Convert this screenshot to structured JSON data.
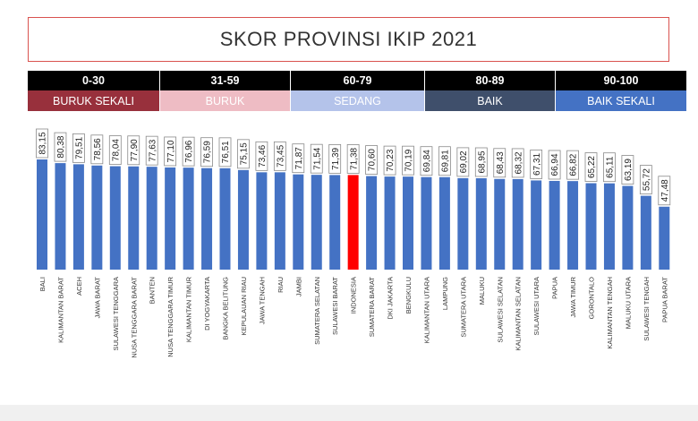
{
  "title": "SKOR PROVINSI IKIP 2021",
  "legend": [
    {
      "range": "0-30",
      "label": "BURUK SEKALI",
      "color": "#98303c"
    },
    {
      "range": "31-59",
      "label": "BURUK",
      "color": "#eebcc4"
    },
    {
      "range": "60-79",
      "label": "SEDANG",
      "color": "#b4c3ea"
    },
    {
      "range": "80-89",
      "label": "BAIK",
      "color": "#3f4f6b"
    },
    {
      "range": "90-100",
      "label": "BAIK SEKALI",
      "color": "#4472c4"
    }
  ],
  "colors": {
    "bar": "#4472c4",
    "highlight": "#ff0000"
  },
  "chart_data": {
    "type": "bar",
    "title": "SKOR PROVINSI IKIP 2021",
    "categories": [
      "BALI",
      "KALIMANTAN BARAT",
      "ACEH",
      "JAWA BARAT",
      "SULAWESI TENGGARA",
      "NUSA TENGGARA BARAT",
      "BANTEN",
      "NUSA TENGGARA TIMUR",
      "KALIMANTAN TIMUR",
      "DI YOGYAKARTA",
      "BANGKA BELITUNG",
      "KEPULAUAN RIAU",
      "JAWA TENGAH",
      "RIAU",
      "JAMBI",
      "SUMATERA SELATAN",
      "SULAWESI BARAT",
      "INDONESIA",
      "SUMATERA BARAT",
      "DKI JAKARTA",
      "BENGKULU",
      "KALIMANTAN UTARA",
      "LAMPUNG",
      "SUMATERA UTARA",
      "MALUKU",
      "SULAWESI SELATAN",
      "KALIMANTAN SELATAN",
      "SULAWESI UTARA",
      "PAPUA",
      "JAWA TIMUR",
      "GORONTALO",
      "KALIMANTAN TENGAH",
      "MALUKU UTARA",
      "SULAWESI TENGAH",
      "PAPUA BARAT"
    ],
    "values": [
      83.15,
      80.38,
      79.51,
      78.56,
      78.04,
      77.9,
      77.63,
      77.1,
      76.96,
      76.59,
      76.51,
      75.15,
      73.46,
      73.45,
      71.87,
      71.54,
      71.39,
      71.38,
      70.6,
      70.23,
      70.19,
      69.84,
      69.81,
      69.02,
      68.95,
      68.43,
      68.32,
      67.31,
      66.94,
      66.82,
      65.22,
      65.11,
      63.19,
      55.72,
      47.48
    ],
    "value_labels": [
      "83,15",
      "80,38",
      "79,51",
      "78,56",
      "78,04",
      "77,90",
      "77,63",
      "77,10",
      "76,96",
      "76,59",
      "76,51",
      "75,15",
      "73,46",
      "73,45",
      "71,87",
      "71,54",
      "71,39",
      "71,38",
      "70,60",
      "70,23",
      "70,19",
      "69,84",
      "69,81",
      "69,02",
      "68,95",
      "68,43",
      "68,32",
      "67,31",
      "66,94",
      "66,82",
      "65,22",
      "65,11",
      "63,19",
      "55,72",
      "47,48"
    ],
    "highlight": "INDONESIA",
    "ylim": [
      0,
      90
    ]
  }
}
